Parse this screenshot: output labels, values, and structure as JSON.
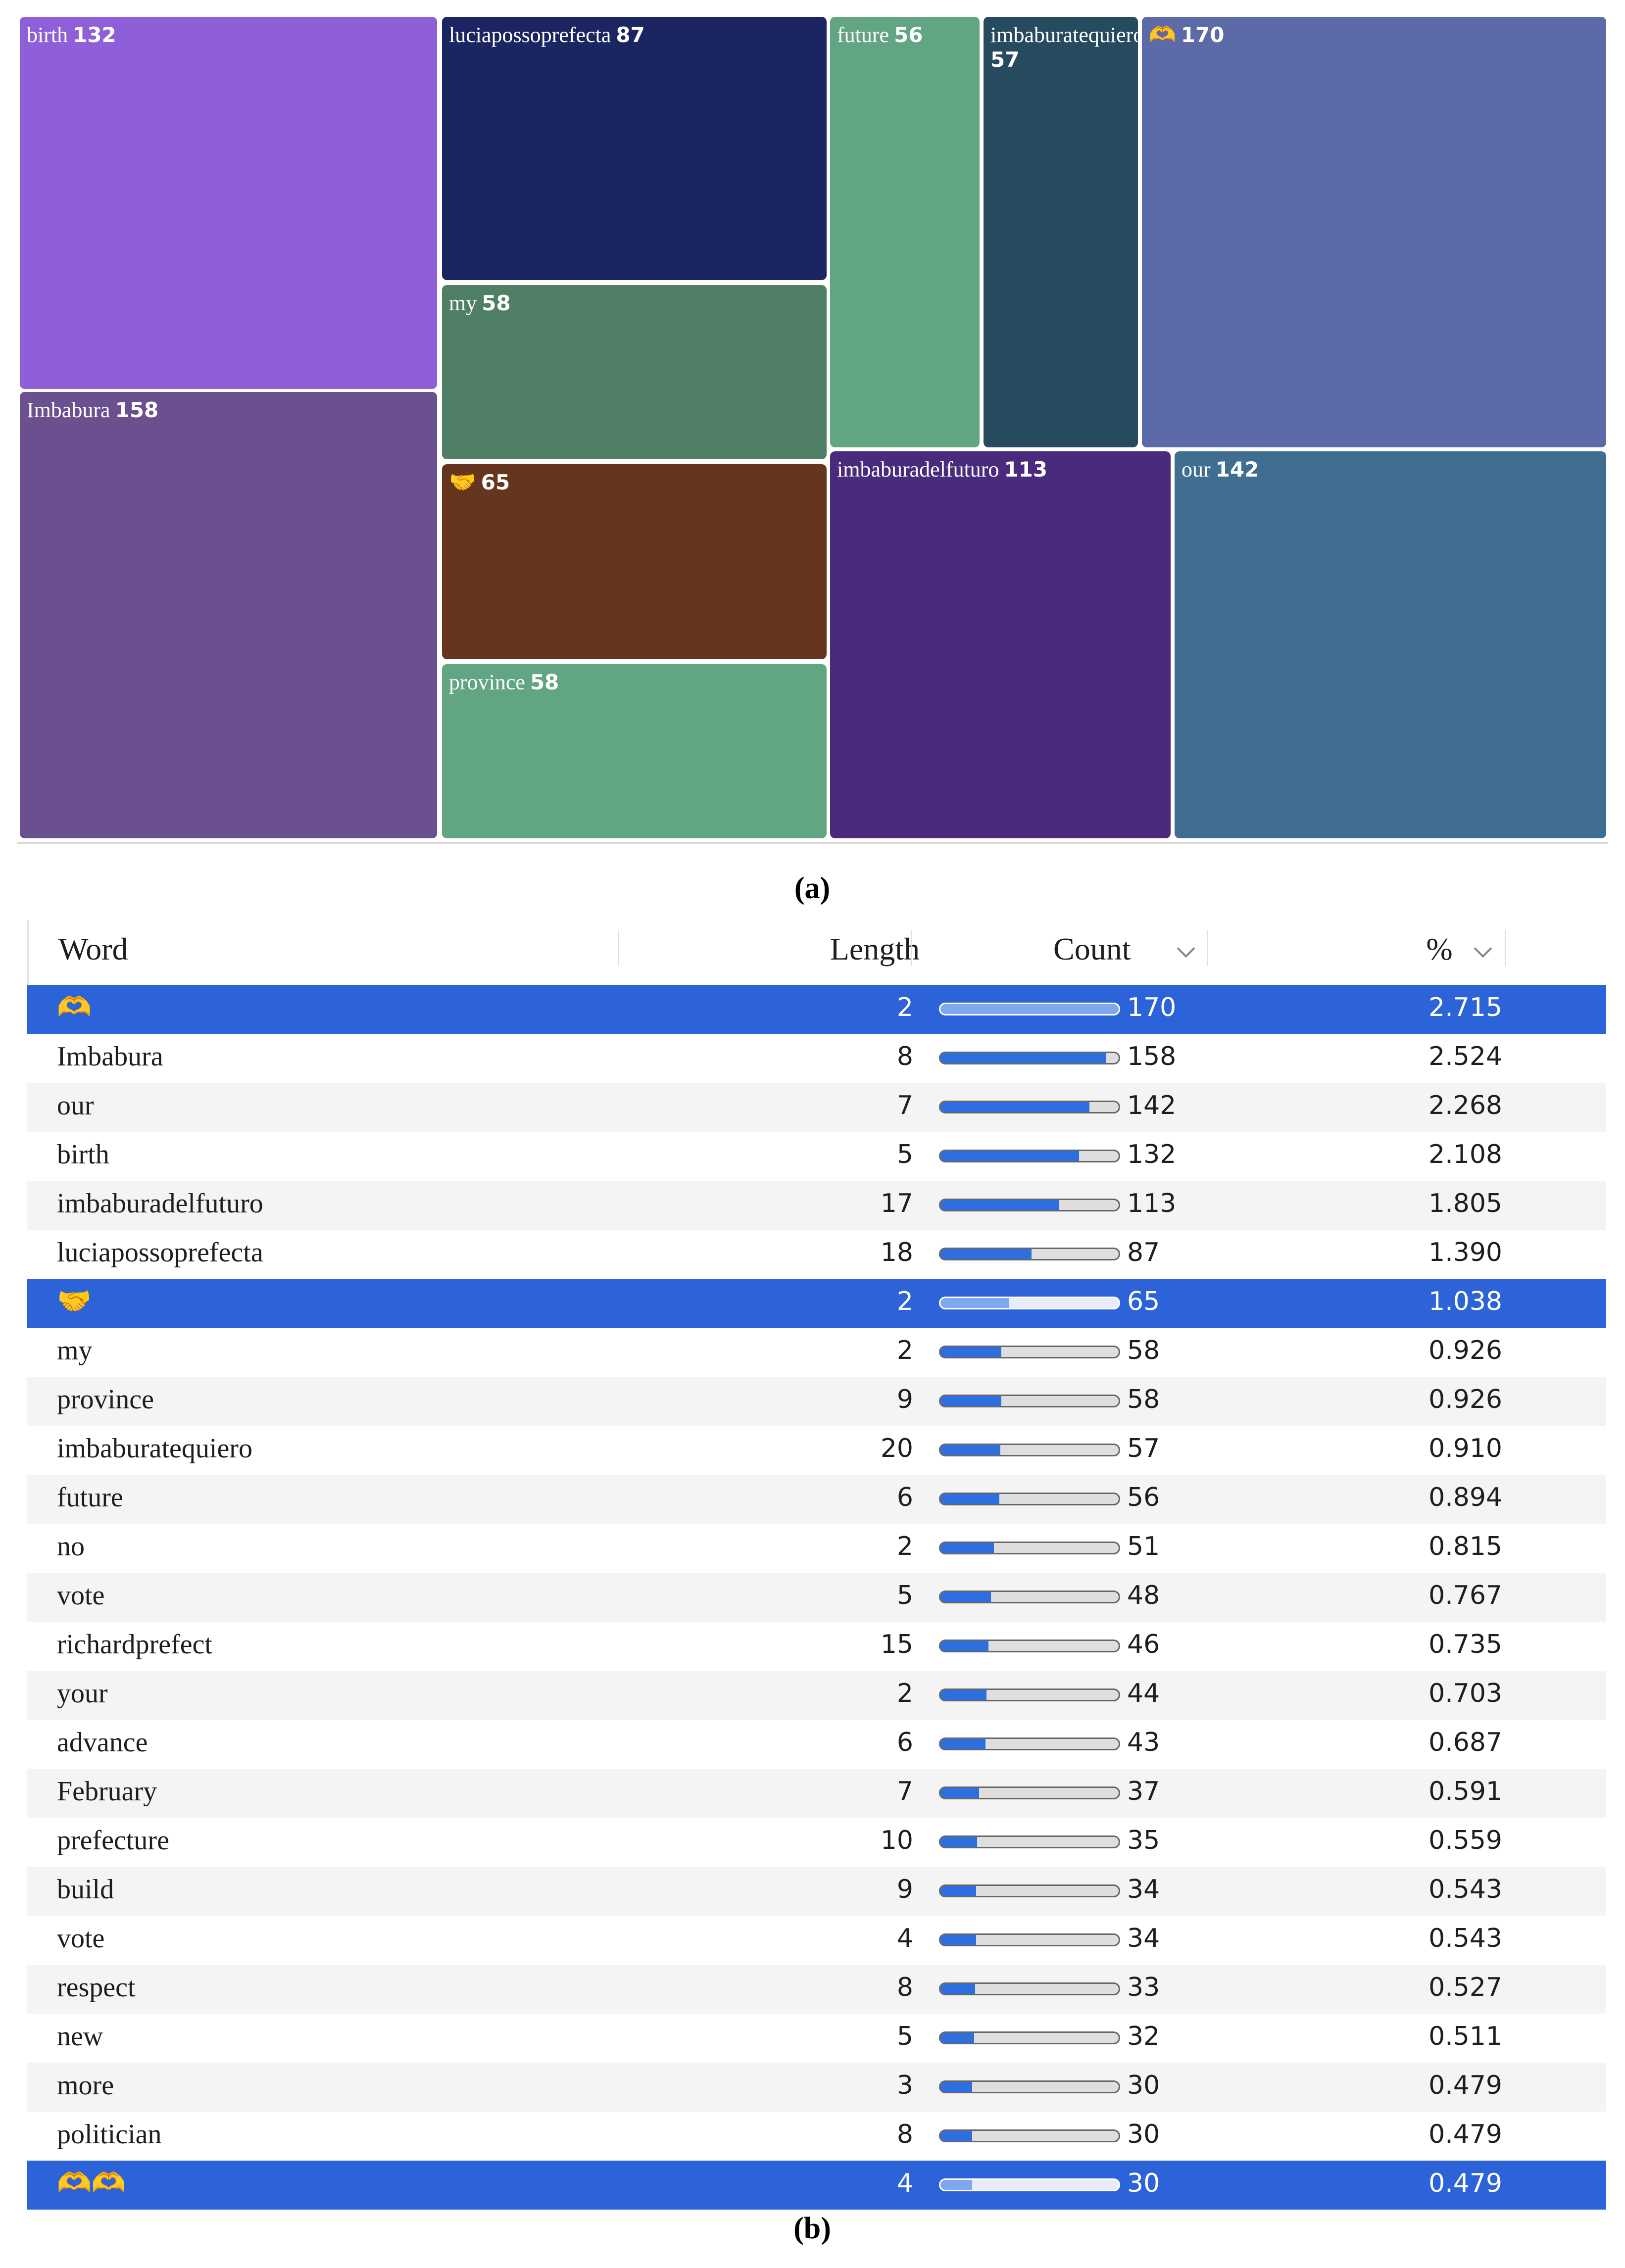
{
  "figure": {
    "panel_a_label": "(a)",
    "panel_b_label": "(b)"
  },
  "chart_data": [
    {
      "type": "treemap",
      "title": "",
      "tiles": [
        {
          "label": "birth",
          "value": 132,
          "color": "#8e5fd9"
        },
        {
          "label": "Imbabura",
          "value": 158,
          "color": "#6a508f"
        },
        {
          "label": "luciapossoprefecta",
          "value": 87,
          "color": "#1b2561"
        },
        {
          "label": "my",
          "value": 58,
          "color": "#4f8066"
        },
        {
          "label": "🤝",
          "value": 65,
          "color": "#66351d"
        },
        {
          "label": "province",
          "value": 58,
          "color": "#62a583"
        },
        {
          "label": "future",
          "value": 56,
          "color": "#62a583"
        },
        {
          "label": "imbaburatequiero",
          "value": 57,
          "color": "#274b5e"
        },
        {
          "label": "🫶",
          "value": 170,
          "color": "#5c6ba8"
        },
        {
          "label": "imbaburadelfuturo",
          "value": 113,
          "color": "#4a2a7c"
        },
        {
          "label": "our",
          "value": 142,
          "color": "#3f6e91"
        }
      ]
    },
    {
      "type": "table",
      "columns": [
        "Word",
        "Length",
        "Count",
        "%"
      ],
      "count_max": 170,
      "rows": [
        {
          "word": "🫶",
          "length": 2,
          "count": 170,
          "pct": "2.715",
          "selected": true
        },
        {
          "word": "Imbabura",
          "length": 8,
          "count": 158,
          "pct": "2.524",
          "selected": false
        },
        {
          "word": "our",
          "length": 7,
          "count": 142,
          "pct": "2.268",
          "selected": false
        },
        {
          "word": "birth",
          "length": 5,
          "count": 132,
          "pct": "2.108",
          "selected": false
        },
        {
          "word": "imbaburadelfuturo",
          "length": 17,
          "count": 113,
          "pct": "1.805",
          "selected": false
        },
        {
          "word": "luciapossoprefecta",
          "length": 18,
          "count": 87,
          "pct": "1.390",
          "selected": false
        },
        {
          "word": "🤝",
          "length": 2,
          "count": 65,
          "pct": "1.038",
          "selected": true
        },
        {
          "word": "my",
          "length": 2,
          "count": 58,
          "pct": "0.926",
          "selected": false
        },
        {
          "word": "province",
          "length": 9,
          "count": 58,
          "pct": "0.926",
          "selected": false
        },
        {
          "word": "imbaburatequiero",
          "length": 20,
          "count": 57,
          "pct": "0.910",
          "selected": false
        },
        {
          "word": "future",
          "length": 6,
          "count": 56,
          "pct": "0.894",
          "selected": false
        },
        {
          "word": "no",
          "length": 2,
          "count": 51,
          "pct": "0.815",
          "selected": false
        },
        {
          "word": "vote",
          "length": 5,
          "count": 48,
          "pct": "0.767",
          "selected": false
        },
        {
          "word": "richardprefect",
          "length": 15,
          "count": 46,
          "pct": "0.735",
          "selected": false
        },
        {
          "word": "your",
          "length": 2,
          "count": 44,
          "pct": "0.703",
          "selected": false
        },
        {
          "word": "advance",
          "length": 6,
          "count": 43,
          "pct": "0.687",
          "selected": false
        },
        {
          "word": "February",
          "length": 7,
          "count": 37,
          "pct": "0.591",
          "selected": false
        },
        {
          "word": "prefecture",
          "length": 10,
          "count": 35,
          "pct": "0.559",
          "selected": false
        },
        {
          "word": "build",
          "length": 9,
          "count": 34,
          "pct": "0.543",
          "selected": false
        },
        {
          "word": "vote",
          "length": 4,
          "count": 34,
          "pct": "0.543",
          "selected": false
        },
        {
          "word": "respect",
          "length": 8,
          "count": 33,
          "pct": "0.527",
          "selected": false
        },
        {
          "word": "new",
          "length": 5,
          "count": 32,
          "pct": "0.511",
          "selected": false
        },
        {
          "word": "more",
          "length": 3,
          "count": 30,
          "pct": "0.479",
          "selected": false
        },
        {
          "word": "politician",
          "length": 8,
          "count": 30,
          "pct": "0.479",
          "selected": false
        },
        {
          "word": "🫶🫶",
          "length": 4,
          "count": 30,
          "pct": "0.479",
          "selected": true
        }
      ]
    }
  ]
}
